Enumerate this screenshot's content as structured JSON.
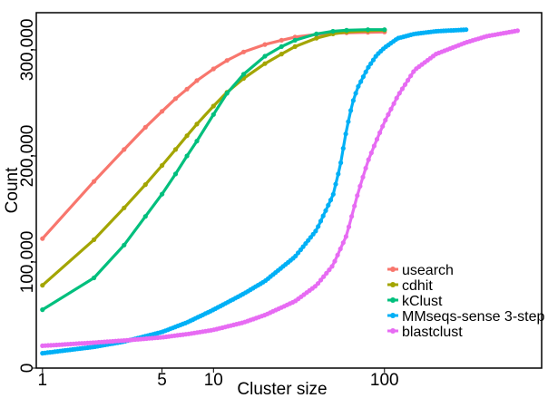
{
  "chart_data": {
    "type": "line",
    "xlabel": "Cluster size",
    "ylabel": "Count",
    "x_scale": "log",
    "xlim": [
      0.92,
      830
    ],
    "ylim": [
      0,
      335000
    ],
    "x_ticks": [
      {
        "value": 1,
        "label": "1"
      },
      {
        "value": 5,
        "label": "5"
      },
      {
        "value": 10,
        "label": "10"
      },
      {
        "value": 100,
        "label": "100"
      }
    ],
    "y_ticks": [
      {
        "value": 0,
        "label": "0"
      },
      {
        "value": 100000,
        "label": "100,000"
      },
      {
        "value": 200000,
        "label": "200,000"
      },
      {
        "value": 300000,
        "label": "300,000"
      }
    ],
    "grid": false,
    "legend_position": "bottom-right",
    "series": [
      {
        "name": "usearch",
        "color": "#F8766D",
        "x": [
          1,
          2,
          3,
          4,
          5,
          6,
          7,
          8,
          10,
          12,
          15,
          20,
          25,
          30,
          40,
          50,
          60,
          80,
          100
        ],
        "y": [
          122000,
          176000,
          206000,
          227000,
          242000,
          254000,
          263000,
          271000,
          282000,
          290000,
          298000,
          305000,
          309000,
          312000,
          314500,
          315500,
          316000,
          316500,
          316800
        ]
      },
      {
        "name": "cdhit",
        "color": "#A3A500",
        "x": [
          1,
          2,
          3,
          4,
          5,
          6,
          7,
          8,
          10,
          12,
          15,
          20,
          25,
          30,
          40,
          50,
          60,
          80,
          100
        ],
        "y": [
          78000,
          121000,
          151000,
          173000,
          191000,
          206000,
          219000,
          230000,
          247000,
          260000,
          273000,
          287000,
          296000,
          303000,
          311000,
          315000,
          317000,
          318000,
          318500
        ]
      },
      {
        "name": "kClust",
        "color": "#00BF7D",
        "x": [
          1,
          2,
          3,
          4,
          5,
          6,
          7,
          8,
          10,
          12,
          15,
          20,
          25,
          30,
          40,
          50,
          60,
          80,
          100
        ],
        "y": [
          55000,
          85000,
          116000,
          143000,
          164000,
          183000,
          200000,
          214000,
          239000,
          259000,
          277000,
          294000,
          303000,
          309000,
          315000,
          317500,
          318500,
          319000,
          319000
        ]
      },
      {
        "name": "MMseqs-sense 3-step",
        "color": "#00B0F6",
        "x": [
          1,
          2,
          3,
          5,
          7,
          10,
          15,
          20,
          30,
          40,
          50,
          55,
          60,
          65,
          70,
          80,
          90,
          100,
          120,
          150,
          200,
          300
        ],
        "y": [
          14000,
          20000,
          25000,
          34000,
          43000,
          55000,
          70000,
          82000,
          105000,
          130000,
          163000,
          190000,
          225000,
          250000,
          265000,
          283000,
          295000,
          302000,
          311000,
          315000,
          317500,
          319000
        ]
      },
      {
        "name": "blastclust",
        "color": "#E76BF3",
        "x": [
          1,
          2,
          3,
          5,
          7,
          10,
          15,
          20,
          30,
          40,
          50,
          60,
          70,
          80,
          90,
          100,
          120,
          150,
          200,
          300,
          400,
          600
        ],
        "y": [
          21000,
          24000,
          26000,
          29000,
          32000,
          36000,
          43000,
          50000,
          63000,
          78000,
          97000,
          125000,
          165000,
          195000,
          215000,
          232000,
          257000,
          281000,
          296000,
          307000,
          313000,
          318000
        ]
      }
    ]
  }
}
